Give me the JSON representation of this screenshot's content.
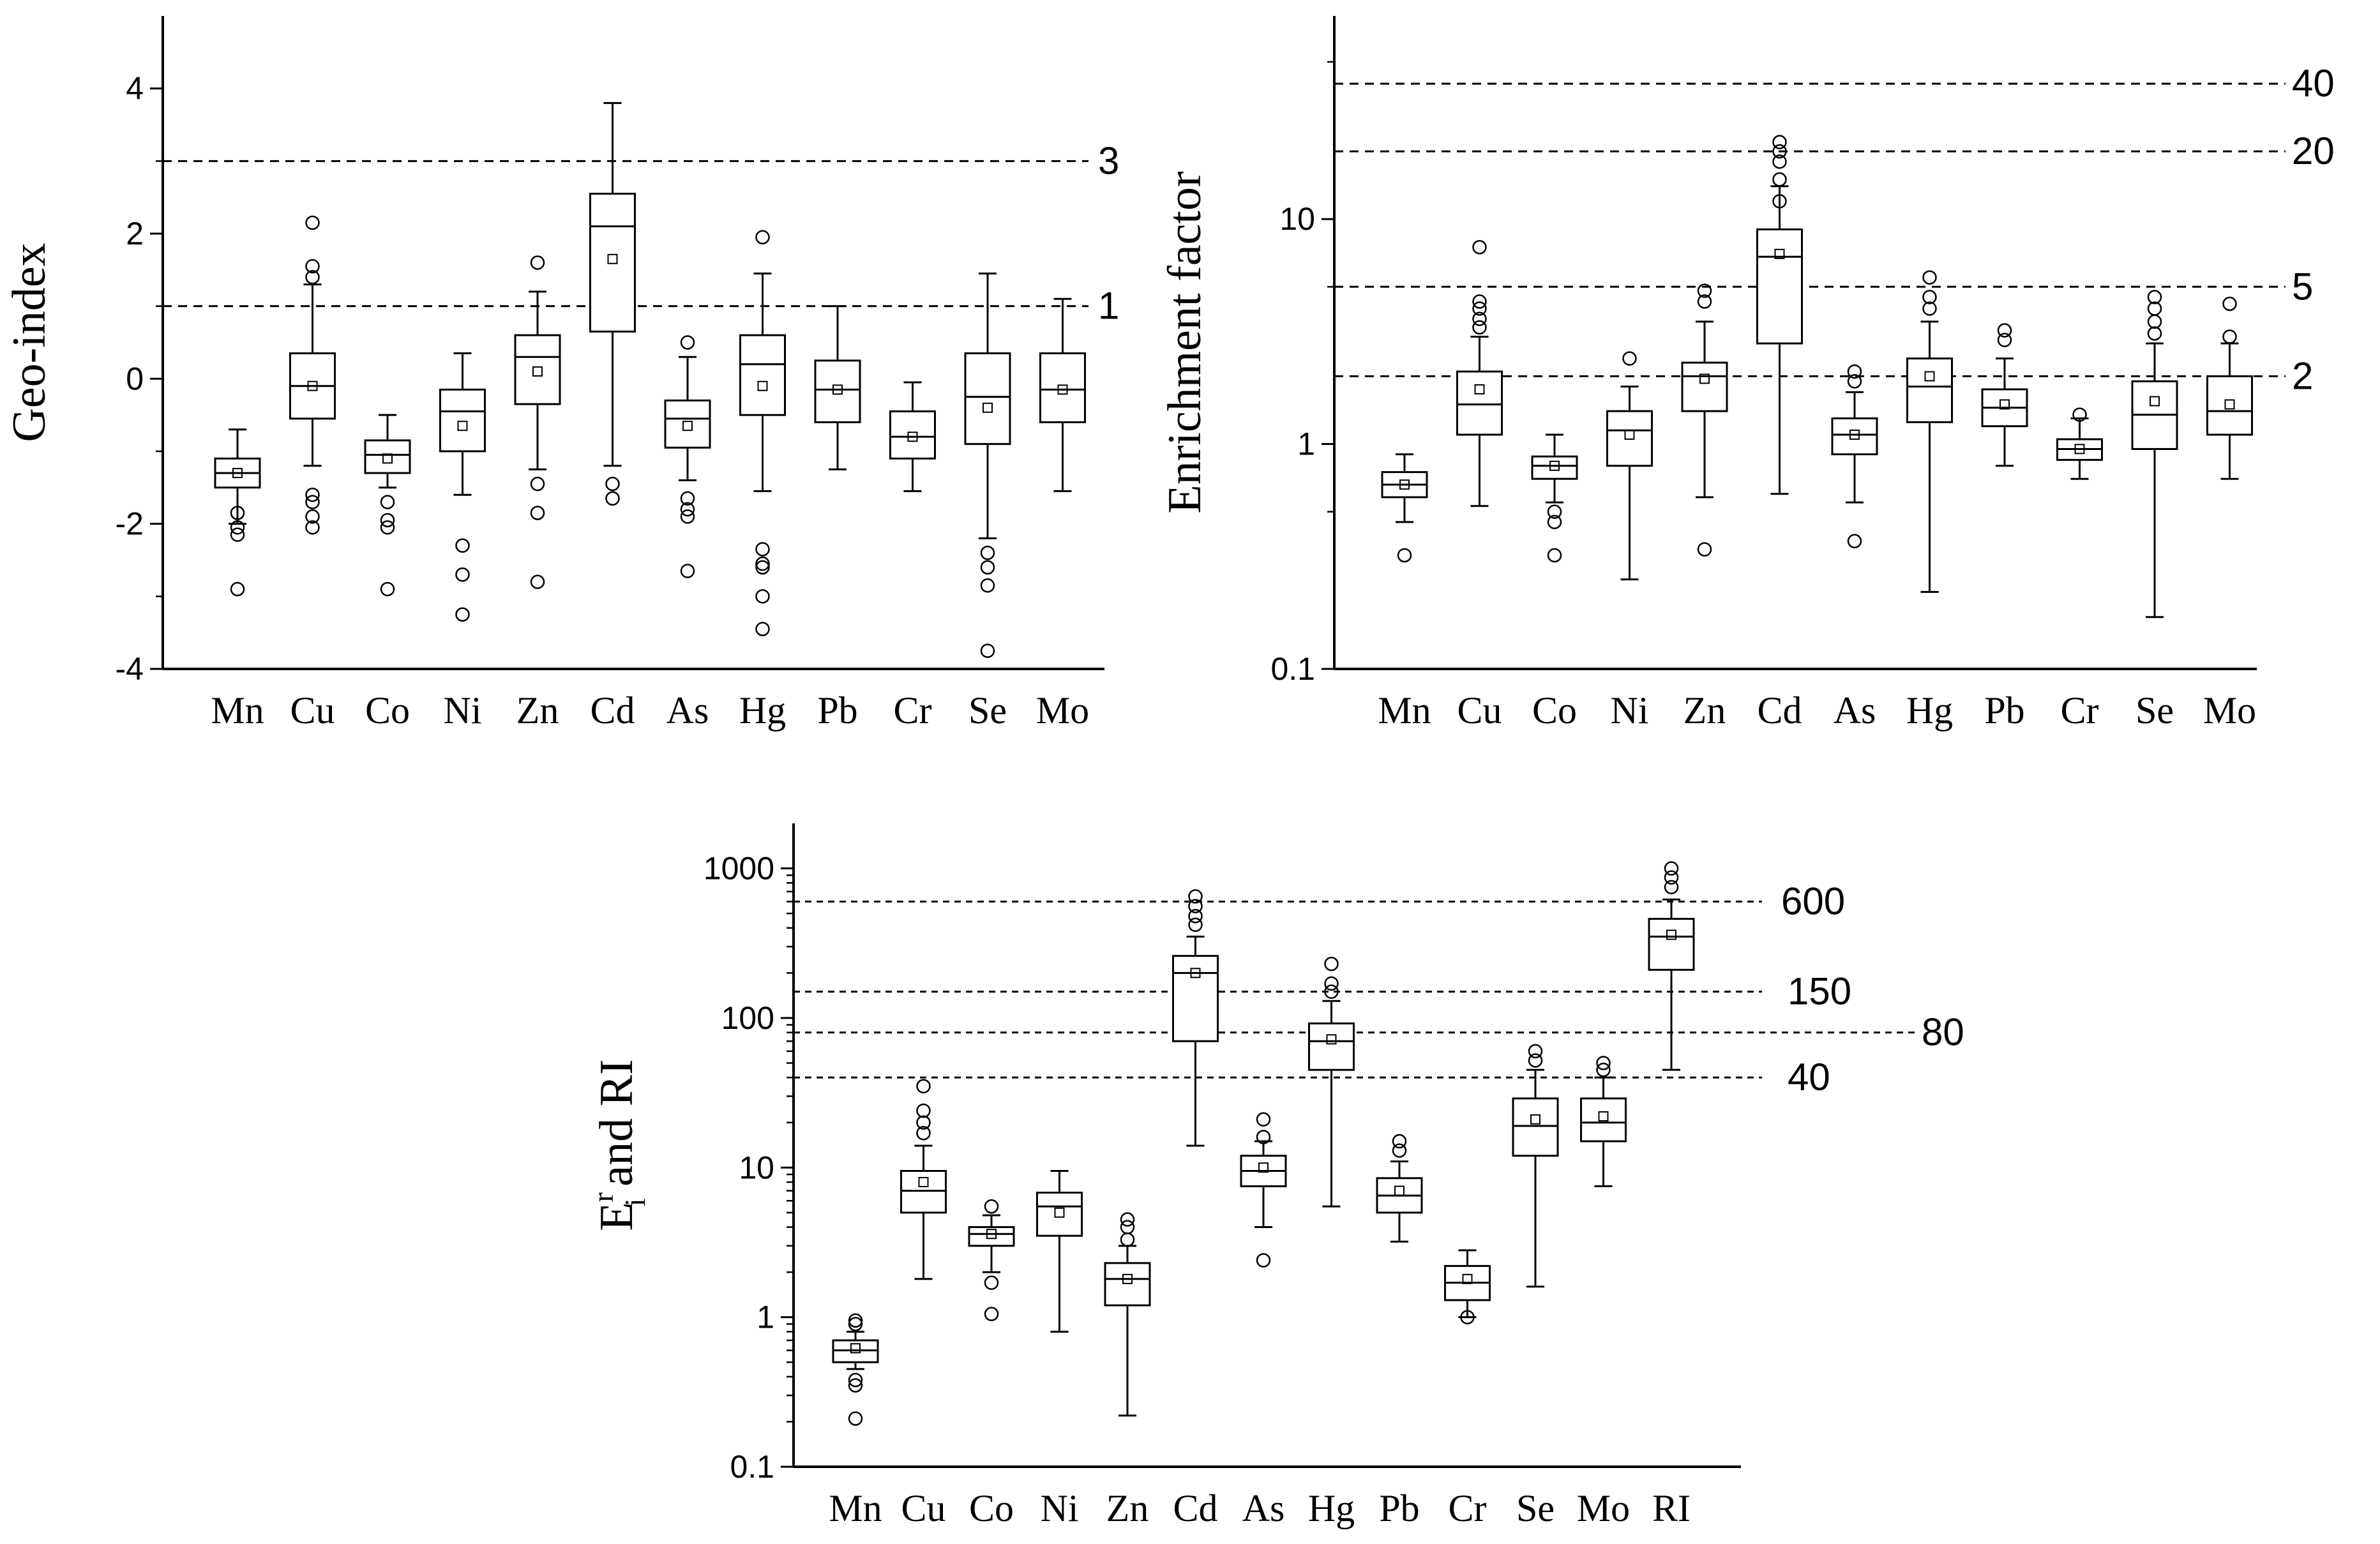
{
  "chart_data": [
    {
      "id": "geo",
      "type": "box",
      "ylabel": "Geo-index",
      "yscale": "linear",
      "ylim": [
        -4,
        5
      ],
      "yticks": [
        4,
        2,
        0,
        -2,
        -4
      ],
      "yticklabels": [
        "4",
        "2",
        "0",
        "-2",
        "-4"
      ],
      "reference_lines": [
        {
          "value": 3,
          "label": "3"
        },
        {
          "value": 1,
          "label": "1"
        }
      ],
      "categories": [
        "Mn",
        "Cu",
        "Co",
        "Ni",
        "Zn",
        "Cd",
        "As",
        "Hg",
        "Pb",
        "Cr",
        "Se",
        "Mo"
      ],
      "boxes": [
        {
          "min": -2.0,
          "q1": -1.5,
          "median": -1.3,
          "q3": -1.1,
          "max": -0.7,
          "mean": -1.3,
          "outliers": [
            -2.15,
            -2.05,
            -1.85,
            -2.9
          ]
        },
        {
          "min": -1.2,
          "q1": -0.55,
          "median": -0.1,
          "q3": 0.35,
          "max": 1.3,
          "mean": -0.1,
          "outliers": [
            2.15,
            1.55,
            1.4,
            -1.6,
            -1.7,
            -1.9,
            -2.05
          ]
        },
        {
          "min": -1.5,
          "q1": -1.3,
          "median": -1.05,
          "q3": -0.85,
          "max": -0.5,
          "mean": -1.1,
          "outliers": [
            -1.7,
            -1.95,
            -2.05,
            -2.9
          ]
        },
        {
          "min": -1.6,
          "q1": -1.0,
          "median": -0.45,
          "q3": -0.15,
          "max": 0.35,
          "mean": -0.65,
          "outliers": [
            -2.3,
            -2.7,
            -3.25
          ]
        },
        {
          "min": -1.25,
          "q1": -0.35,
          "median": 0.3,
          "q3": 0.6,
          "max": 1.2,
          "mean": 0.1,
          "outliers": [
            1.6,
            -1.45,
            -1.85,
            -2.8
          ]
        },
        {
          "min": -1.2,
          "q1": 0.65,
          "median": 2.1,
          "q3": 2.55,
          "max": 3.8,
          "mean": 1.65,
          "outliers": [
            -1.45,
            -1.65
          ]
        },
        {
          "min": -1.4,
          "q1": -0.95,
          "median": -0.55,
          "q3": -0.3,
          "max": 0.3,
          "mean": -0.65,
          "outliers": [
            0.5,
            -1.65,
            -1.8,
            -1.9,
            -2.65
          ]
        },
        {
          "min": -1.55,
          "q1": -0.5,
          "median": 0.2,
          "q3": 0.6,
          "max": 1.45,
          "mean": -0.1,
          "outliers": [
            1.95,
            -2.35,
            -2.55,
            -2.6,
            -3.0,
            -3.45
          ]
        },
        {
          "min": -1.25,
          "q1": -0.6,
          "median": -0.15,
          "q3": 0.25,
          "max": 1.0,
          "mean": -0.15,
          "outliers": []
        },
        {
          "min": -1.55,
          "q1": -1.1,
          "median": -0.8,
          "q3": -0.45,
          "max": -0.05,
          "mean": -0.8,
          "outliers": []
        },
        {
          "min": -2.2,
          "q1": -0.9,
          "median": -0.25,
          "q3": 0.35,
          "max": 1.45,
          "mean": -0.4,
          "outliers": [
            -2.4,
            -2.6,
            -2.85,
            -3.75
          ]
        },
        {
          "min": -1.55,
          "q1": -0.6,
          "median": -0.15,
          "q3": 0.35,
          "max": 1.1,
          "mean": -0.15,
          "outliers": []
        }
      ]
    },
    {
      "id": "ef",
      "type": "box",
      "ylabel": "Enrichment factor",
      "yscale": "log",
      "ylim": [
        0.1,
        80
      ],
      "yticks": [
        10,
        1,
        0.1
      ],
      "yticklabels": [
        "10",
        "1",
        "0.1"
      ],
      "reference_lines": [
        {
          "value": 40,
          "label": "40"
        },
        {
          "value": 20,
          "label": "20"
        },
        {
          "value": 5,
          "label": "5"
        },
        {
          "value": 2,
          "label": "2"
        }
      ],
      "categories": [
        "Mn",
        "Cu",
        "Co",
        "Ni",
        "Zn",
        "Cd",
        "As",
        "Hg",
        "Pb",
        "Cr",
        "Se",
        "Mo"
      ],
      "boxes": [
        {
          "min": 0.45,
          "q1": 0.58,
          "median": 0.66,
          "q3": 0.75,
          "max": 0.9,
          "mean": 0.66,
          "outliers": [
            0.32
          ]
        },
        {
          "min": 0.53,
          "q1": 1.1,
          "median": 1.5,
          "q3": 2.1,
          "max": 3.0,
          "mean": 1.75,
          "outliers": [
            7.5,
            4.3,
            4.0,
            3.6,
            3.3
          ]
        },
        {
          "min": 0.55,
          "q1": 0.7,
          "median": 0.8,
          "q3": 0.88,
          "max": 1.1,
          "mean": 0.8,
          "outliers": [
            0.5,
            0.45,
            0.32
          ]
        },
        {
          "min": 0.25,
          "q1": 0.8,
          "median": 1.15,
          "q3": 1.4,
          "max": 1.8,
          "mean": 1.1,
          "outliers": [
            2.4
          ]
        },
        {
          "min": 0.58,
          "q1": 1.4,
          "median": 2.0,
          "q3": 2.3,
          "max": 3.5,
          "mean": 1.95,
          "outliers": [
            4.8,
            4.3,
            0.34
          ]
        },
        {
          "min": 0.6,
          "q1": 2.8,
          "median": 6.8,
          "q3": 9.0,
          "max": 14.0,
          "mean": 7.0,
          "outliers": [
            22.0,
            20.0,
            18.0,
            15.0,
            12.0
          ]
        },
        {
          "min": 0.55,
          "q1": 0.9,
          "median": 1.1,
          "q3": 1.3,
          "max": 1.7,
          "mean": 1.1,
          "outliers": [
            2.1,
            1.9,
            0.37
          ]
        },
        {
          "min": 0.22,
          "q1": 1.25,
          "median": 1.8,
          "q3": 2.4,
          "max": 3.5,
          "mean": 2.0,
          "outliers": [
            5.5,
            4.5,
            4.0
          ]
        },
        {
          "min": 0.8,
          "q1": 1.2,
          "median": 1.45,
          "q3": 1.75,
          "max": 2.4,
          "mean": 1.5,
          "outliers": [
            3.2,
            2.9
          ]
        },
        {
          "min": 0.7,
          "q1": 0.85,
          "median": 0.95,
          "q3": 1.05,
          "max": 1.3,
          "mean": 0.95,
          "outliers": [
            1.35
          ]
        },
        {
          "min": 0.17,
          "q1": 0.95,
          "median": 1.35,
          "q3": 1.9,
          "max": 2.8,
          "mean": 1.55,
          "outliers": [
            4.5,
            4.0,
            3.5,
            3.1
          ]
        },
        {
          "min": 0.7,
          "q1": 1.1,
          "median": 1.4,
          "q3": 2.0,
          "max": 2.8,
          "mean": 1.5,
          "outliers": [
            4.2,
            3.0
          ]
        }
      ]
    },
    {
      "id": "eri",
      "type": "box",
      "ylabel": "E",
      "ylabel_sup": "r",
      "ylabel_sub": "i",
      "ylabel_rest": " and RI",
      "yscale": "log",
      "ylim": [
        0.1,
        2000
      ],
      "yticks": [
        1000,
        100,
        10,
        1,
        0.1
      ],
      "yticklabels": [
        "1000",
        "100",
        "10",
        "1",
        "0.1"
      ],
      "reference_lines": [
        {
          "value": 600,
          "label": "600"
        },
        {
          "value": 150,
          "label": "150"
        },
        {
          "value": 80,
          "label": "80"
        },
        {
          "value": 40,
          "label": "40"
        }
      ],
      "categories": [
        "Mn",
        "Cu",
        "Co",
        "Ni",
        "Zn",
        "Cd",
        "As",
        "Hg",
        "Pb",
        "Cr",
        "Se",
        "Mo",
        "RI"
      ],
      "boxes": [
        {
          "min": 0.45,
          "q1": 0.5,
          "median": 0.6,
          "q3": 0.7,
          "max": 0.8,
          "mean": 0.62,
          "outliers": [
            0.95,
            0.9,
            0.38,
            0.35,
            0.21
          ]
        },
        {
          "min": 1.8,
          "q1": 5.0,
          "median": 7.0,
          "q3": 9.5,
          "max": 14.0,
          "mean": 8.0,
          "outliers": [
            35.0,
            24.0,
            20.0,
            17.0
          ]
        },
        {
          "min": 2.0,
          "q1": 3.0,
          "median": 3.6,
          "q3": 4.0,
          "max": 4.8,
          "mean": 3.6,
          "outliers": [
            5.5,
            1.7,
            1.05
          ]
        },
        {
          "min": 0.8,
          "q1": 3.5,
          "median": 5.5,
          "q3": 6.8,
          "max": 9.5,
          "mean": 5.0,
          "outliers": []
        },
        {
          "min": 0.22,
          "q1": 1.2,
          "median": 1.8,
          "q3": 2.3,
          "max": 3.0,
          "mean": 1.8,
          "outliers": [
            4.5,
            4.0,
            3.3
          ]
        },
        {
          "min": 14.0,
          "q1": 70.0,
          "median": 200.0,
          "q3": 260.0,
          "max": 350.0,
          "mean": 200.0,
          "outliers": [
            650.0,
            560.0,
            480.0,
            420.0
          ]
        },
        {
          "min": 4.0,
          "q1": 7.5,
          "median": 9.5,
          "q3": 12.0,
          "max": 15.0,
          "mean": 10.0,
          "outliers": [
            21.0,
            16.0,
            2.4
          ]
        },
        {
          "min": 5.5,
          "q1": 45.0,
          "median": 70.0,
          "q3": 92.0,
          "max": 130.0,
          "mean": 72.0,
          "outliers": [
            230.0,
            170.0,
            150.0
          ]
        },
        {
          "min": 3.2,
          "q1": 5.0,
          "median": 6.5,
          "q3": 8.5,
          "max": 11.0,
          "mean": 7.0,
          "outliers": [
            15.0,
            13.0
          ]
        },
        {
          "min": 1.0,
          "q1": 1.3,
          "median": 1.7,
          "q3": 2.2,
          "max": 2.8,
          "mean": 1.8,
          "outliers": [
            1.0
          ]
        },
        {
          "min": 1.6,
          "q1": 12.0,
          "median": 19.0,
          "q3": 29.0,
          "max": 45.0,
          "mean": 21.0,
          "outliers": [
            60.0,
            52.0
          ]
        },
        {
          "min": 7.5,
          "q1": 15.0,
          "median": 20.0,
          "q3": 29.0,
          "max": 40.0,
          "mean": 22.0,
          "outliers": [
            50.0,
            45.0
          ]
        },
        {
          "min": 45.0,
          "q1": 210.0,
          "median": 350.0,
          "q3": 460.0,
          "max": 620.0,
          "mean": 360.0,
          "outliers": [
            1000.0,
            870.0,
            750.0
          ]
        }
      ]
    }
  ]
}
